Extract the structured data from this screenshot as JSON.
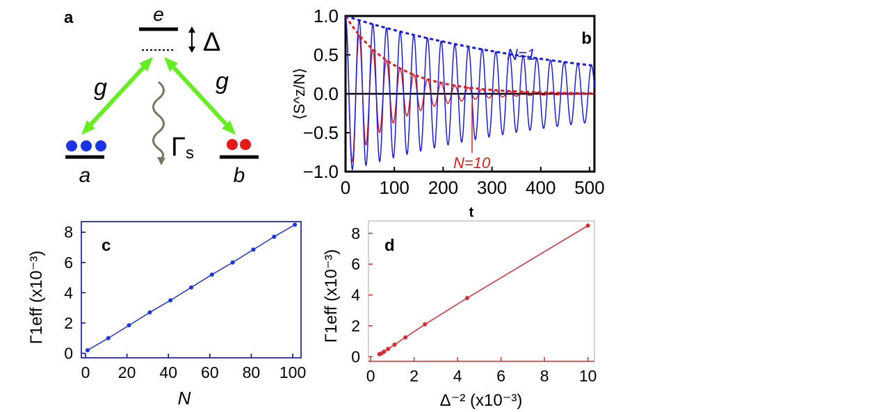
{
  "figure": {
    "panel_labels": {
      "a": "a",
      "b": "b",
      "c": "c",
      "d": "d"
    }
  },
  "panel_a": {
    "level_e": "e",
    "level_a": "a",
    "level_b": "b",
    "detuning": "Δ",
    "coupling_left": "g",
    "coupling_right": "g",
    "decay_symbol": "Γ",
    "decay_subscript": "s",
    "colors": {
      "arrow": "#66ee22",
      "atoms_a": "#1a33e6",
      "atoms_b": "#e61a1a",
      "wave": "#7a7262"
    }
  },
  "chart_data": [
    {
      "panel": "b",
      "type": "line",
      "title": "",
      "xlabel": "t",
      "ylabel": "⟨S^z/N⟩",
      "xlim": [
        0,
        510
      ],
      "ylim": [
        -1.0,
        1.0
      ],
      "xticks": [
        "0",
        "100",
        "200",
        "300",
        "400",
        "500"
      ],
      "yticks": [
        "1.0",
        "0.5",
        "0.0",
        "−0.5",
        "−1.0"
      ],
      "series": [
        {
          "name": "N=1",
          "label": "N=1",
          "color": "#1a1ae6",
          "style": "solid",
          "model": "oscillation",
          "period": 28.0,
          "decay_time": 500
        },
        {
          "name": "N=1 envelope",
          "color": "#1a1ae6",
          "style": "dashed",
          "model": "envelope",
          "decay_time": 500
        },
        {
          "name": "N=10",
          "label": "N=10",
          "color": "#e61a1a",
          "style": "solid",
          "model": "oscillation",
          "period": 28.0,
          "decay_time": 100
        },
        {
          "name": "N=10 envelope",
          "color": "#e61a1a",
          "style": "dashed",
          "model": "envelope",
          "decay_time": 100
        }
      ],
      "reference_line": {
        "y": 0.0,
        "color": "#000000"
      },
      "annotations": {
        "n1": "N=1",
        "n10": "N=10"
      }
    },
    {
      "panel": "c",
      "type": "scatter",
      "xlabel": "N",
      "ylabel": "Γ1eff (x10⁻³)",
      "xlim": [
        -2,
        104
      ],
      "ylim": [
        -0.3,
        8.7
      ],
      "xticks": [
        0,
        20,
        40,
        60,
        80,
        100
      ],
      "yticks": [
        0,
        2,
        4,
        6,
        8
      ],
      "color": "#1a33e6",
      "x": [
        1,
        11,
        21,
        31,
        41,
        51,
        61,
        71,
        81,
        91,
        101
      ],
      "y": [
        0.2,
        1.0,
        1.85,
        2.7,
        3.5,
        4.35,
        5.2,
        6.0,
        6.85,
        7.7,
        8.5
      ]
    },
    {
      "panel": "d",
      "type": "scatter",
      "xlabel": "Δ⁻² (x10⁻³)",
      "ylabel": "Γ1eff (x10⁻³)",
      "xlim": [
        -0.1,
        10.3
      ],
      "ylim": [
        -0.3,
        8.8
      ],
      "xticks": [
        0,
        2,
        4,
        6,
        8,
        10
      ],
      "yticks": [
        0,
        2,
        4,
        6,
        8
      ],
      "color": "#e0282e",
      "x": [
        0.4,
        0.5,
        0.62,
        0.8,
        1.1,
        1.6,
        2.5,
        4.44,
        10.0
      ],
      "y": [
        0.16,
        0.22,
        0.33,
        0.5,
        0.78,
        1.25,
        2.1,
        3.8,
        8.5
      ]
    }
  ]
}
